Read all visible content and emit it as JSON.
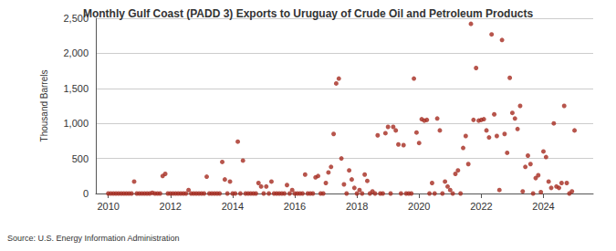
{
  "chart_data": {
    "type": "scatter",
    "title": "Monthly Gulf Coast (PADD 3) Exports to Uruguay of Crude Oil and Petroleum Products",
    "y_label": "Thousand Barrels",
    "annotations": [
      "Source: U.S. Energy Information Administration"
    ],
    "color": "#a52a1f",
    "marker": "circle",
    "grid": true,
    "xlim": [
      2009.6,
      2025.6
    ],
    "xticks": [
      2010,
      2012,
      2014,
      2016,
      2018,
      2020,
      2022,
      2024
    ],
    "ylim": [
      0,
      2500
    ],
    "yticks": [
      0,
      500,
      {
        "value": 1000,
        "label": "1,000"
      },
      {
        "value": 1500,
        "label": "1,500"
      },
      {
        "value": 2000,
        "label": "2,000"
      },
      {
        "value": 2500,
        "label": "2,500"
      }
    ],
    "x": [
      2010,
      2010.083,
      2010.167,
      2010.25,
      2010.333,
      2010.417,
      2010.5,
      2010.583,
      2010.667,
      2010.75,
      2010.833,
      2010.917,
      2011,
      2011.083,
      2011.167,
      2011.25,
      2011.333,
      2011.417,
      2011.5,
      2011.583,
      2011.667,
      2011.75,
      2011.833,
      2011.917,
      2012,
      2012.083,
      2012.167,
      2012.25,
      2012.333,
      2012.417,
      2012.5,
      2012.583,
      2012.667,
      2012.75,
      2012.833,
      2012.917,
      2013,
      2013.083,
      2013.167,
      2013.25,
      2013.333,
      2013.417,
      2013.5,
      2013.583,
      2013.667,
      2013.75,
      2013.833,
      2013.917,
      2014,
      2014.083,
      2014.167,
      2014.25,
      2014.333,
      2014.417,
      2014.5,
      2014.583,
      2014.667,
      2014.75,
      2014.833,
      2014.917,
      2015,
      2015.083,
      2015.167,
      2015.25,
      2015.333,
      2015.417,
      2015.5,
      2015.583,
      2015.667,
      2015.75,
      2015.833,
      2015.917,
      2016,
      2016.083,
      2016.167,
      2016.25,
      2016.333,
      2016.417,
      2016.5,
      2016.583,
      2016.667,
      2016.75,
      2016.833,
      2016.917,
      2017,
      2017.083,
      2017.167,
      2017.25,
      2017.333,
      2017.417,
      2017.5,
      2017.583,
      2017.667,
      2017.75,
      2017.833,
      2017.917,
      2018,
      2018.083,
      2018.167,
      2018.25,
      2018.333,
      2018.417,
      2018.5,
      2018.583,
      2018.667,
      2018.75,
      2018.833,
      2018.917,
      2019,
      2019.083,
      2019.167,
      2019.25,
      2019.333,
      2019.417,
      2019.5,
      2019.583,
      2019.667,
      2019.75,
      2019.833,
      2019.917,
      2020,
      2020.083,
      2020.167,
      2020.25,
      2020.333,
      2020.417,
      2020.5,
      2020.583,
      2020.667,
      2020.75,
      2020.833,
      2020.917,
      2021,
      2021.083,
      2021.167,
      2021.25,
      2021.333,
      2021.417,
      2021.5,
      2021.583,
      2021.667,
      2021.75,
      2021.833,
      2021.917,
      2022,
      2022.083,
      2022.167,
      2022.25,
      2022.333,
      2022.417,
      2022.5,
      2022.583,
      2022.667,
      2022.75,
      2022.833,
      2022.917,
      2023,
      2023.083,
      2023.167,
      2023.25,
      2023.333,
      2023.417,
      2023.5,
      2023.583,
      2023.667,
      2023.75,
      2023.833,
      2023.917,
      2024,
      2024.083,
      2024.167,
      2024.25,
      2024.333,
      2024.417,
      2024.5,
      2024.583,
      2024.667,
      2024.75,
      2024.833,
      2024.917,
      2025
    ],
    "values": [
      0,
      0,
      0,
      0,
      0,
      0,
      0,
      0,
      0,
      0,
      170,
      0,
      0,
      0,
      0,
      0,
      0,
      10,
      0,
      0,
      0,
      250,
      280,
      0,
      0,
      0,
      0,
      0,
      0,
      0,
      0,
      50,
      0,
      0,
      0,
      0,
      0,
      0,
      240,
      0,
      0,
      0,
      0,
      0,
      450,
      200,
      0,
      170,
      0,
      0,
      740,
      0,
      470,
      0,
      0,
      0,
      0,
      0,
      150,
      100,
      0,
      100,
      0,
      170,
      0,
      0,
      0,
      0,
      0,
      120,
      0,
      50,
      0,
      0,
      0,
      0,
      270,
      0,
      0,
      0,
      230,
      250,
      0,
      0,
      150,
      300,
      380,
      850,
      1570,
      1640,
      500,
      130,
      0,
      330,
      200,
      80,
      0,
      50,
      0,
      270,
      180,
      0,
      30,
      0,
      830,
      0,
      0,
      860,
      950,
      0,
      950,
      900,
      700,
      0,
      690,
      0,
      0,
      0,
      1640,
      870,
      720,
      1060,
      1040,
      1050,
      0,
      150,
      0,
      1070,
      900,
      0,
      170,
      100,
      50,
      0,
      280,
      330,
      0,
      650,
      820,
      420,
      2420,
      1050,
      1790,
      1040,
      1050,
      1060,
      900,
      800,
      2270,
      1130,
      820,
      50,
      2190,
      850,
      580,
      1650,
      1150,
      1070,
      920,
      1250,
      30,
      380,
      540,
      420,
      0,
      220,
      260,
      20,
      600,
      520,
      170,
      80,
      1000,
      100,
      80,
      150,
      1250,
      150,
      0,
      30,
      900
    ]
  }
}
